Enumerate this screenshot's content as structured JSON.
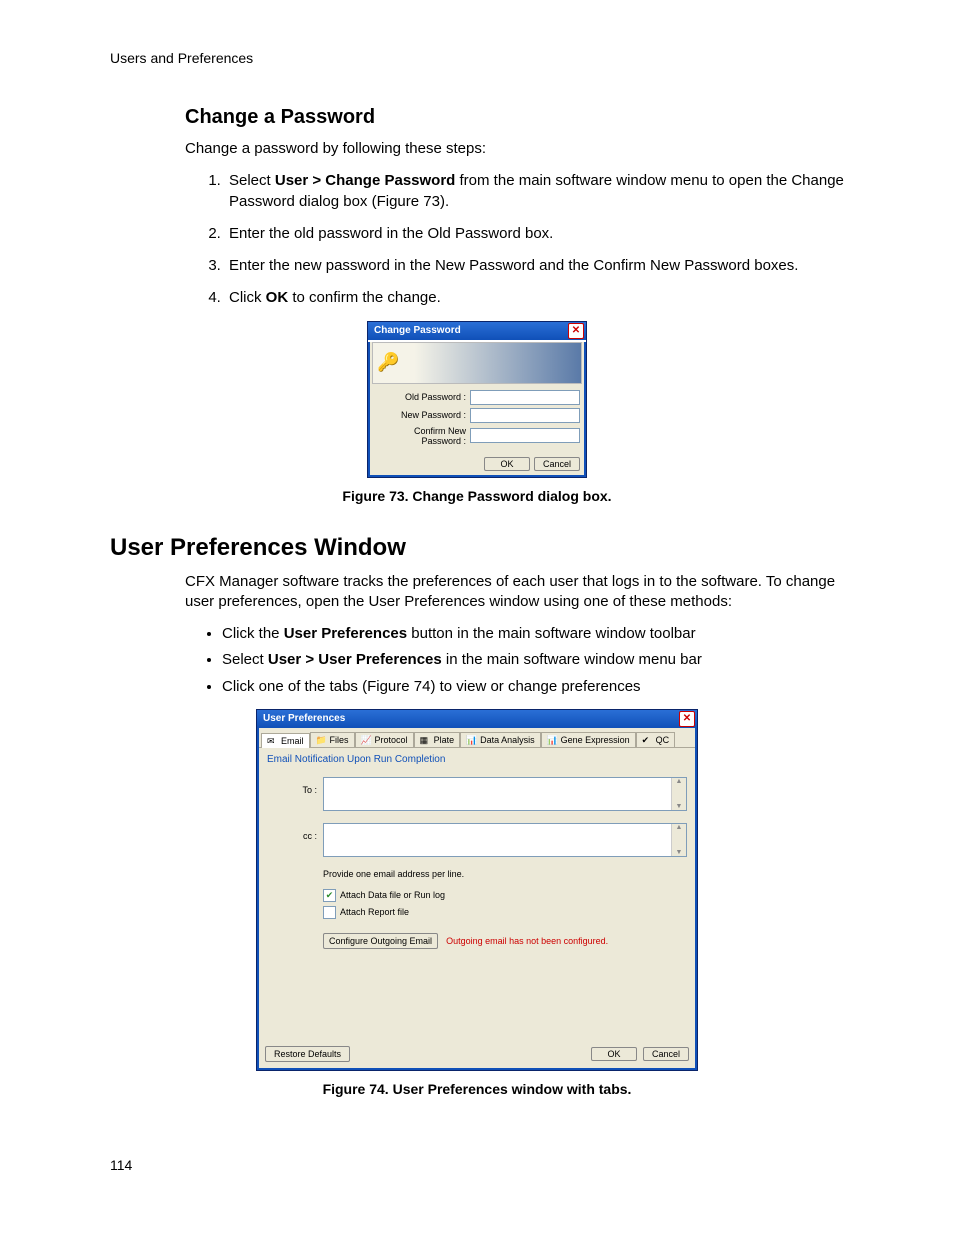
{
  "header_topic": "Users and Preferences",
  "page_number": "114",
  "section1": {
    "title": "Change a Password",
    "intro": "Change a password by following these steps:",
    "steps": {
      "s1_a": "Select ",
      "s1_b": "User > Change Password",
      "s1_c": " from the main software window menu to open the Change Password dialog box (Figure 73).",
      "s2": "Enter the old password in the Old Password box.",
      "s3": "Enter the new password in the New Password and the Confirm New Password boxes.",
      "s4_a": "Click ",
      "s4_b": "OK",
      "s4_c": " to confirm the change."
    },
    "figure_caption": "Figure 73. Change Password dialog box."
  },
  "cp_dialog": {
    "title": "Change Password",
    "labels": {
      "old": "Old Password :",
      "new": "New Password :",
      "confirm": "Confirm New Password :"
    },
    "buttons": {
      "ok": "OK",
      "cancel": "Cancel"
    }
  },
  "section2": {
    "title": "User Preferences Window",
    "intro": "CFX Manager software tracks the preferences of each user that logs in to the software. To change user preferences, open the User Preferences window using one of these methods:",
    "bullets": {
      "b1_a": "Click the ",
      "b1_b": "User Preferences",
      "b1_c": " button in the main software window toolbar",
      "b2_a": "Select ",
      "b2_b": "User > User Preferences",
      "b2_c": " in the main software window menu bar",
      "b3": "Click one of the tabs (Figure 74) to view or change preferences"
    },
    "figure_caption": "Figure 74. User Preferences window with tabs."
  },
  "up_dialog": {
    "title": "User Preferences",
    "tabs": {
      "email": "Email",
      "files": "Files",
      "protocol": "Protocol",
      "plate": "Plate",
      "data_analysis": "Data Analysis",
      "gene_expression": "Gene Expression",
      "qc": "QC"
    },
    "tab_colors": {
      "email": "#4a7ab8",
      "files": "#d9b84a",
      "protocol": "#4a9a6a",
      "plate": "#5aa0c8",
      "data_analysis": "#888888",
      "gene_expression": "#4a7ab8",
      "qc": "#7aa84a"
    },
    "section_label": "Email Notification Upon Run Completion",
    "to_label": "To :",
    "cc_label": "cc :",
    "note": "Provide one email address per line.",
    "check1": "Attach Data file or Run log",
    "check2": "Attach Report file",
    "config_btn": "Configure Outgoing Email",
    "warn": "Outgoing email has not been configured.",
    "footer": {
      "restore": "Restore Defaults",
      "ok": "OK",
      "cancel": "Cancel"
    }
  }
}
